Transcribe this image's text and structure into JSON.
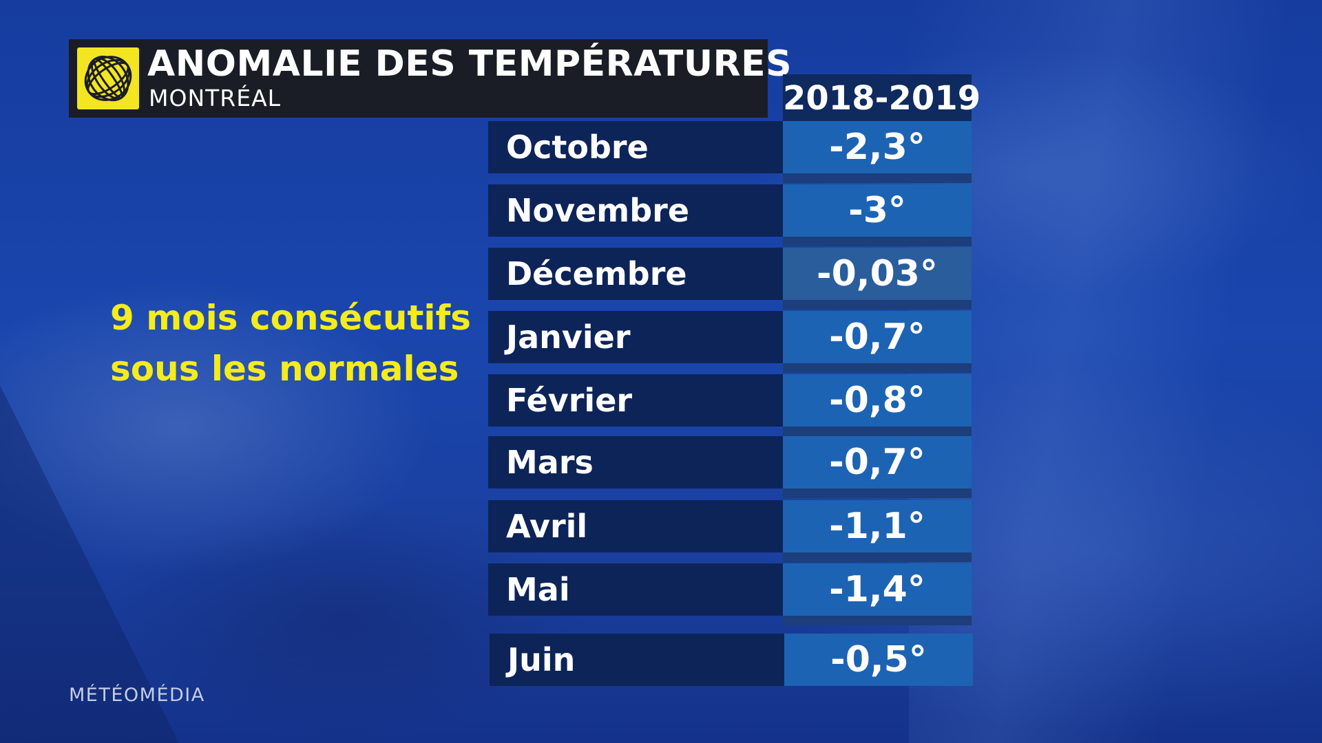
{
  "header": {
    "title": "ANOMALIE DES TEMPÉRATURES",
    "subtitle": "MONTRÉAL",
    "logo_icon": "meteomedia-logo-icon"
  },
  "table": {
    "column_header": "2018-2019",
    "rows": [
      {
        "month": "Octobre",
        "value": "-2,3°"
      },
      {
        "month": "Novembre",
        "value": "-3°"
      },
      {
        "month": "Décembre",
        "value": "-0,03°"
      },
      {
        "month": "Janvier",
        "value": "-0,7°"
      },
      {
        "month": "Février",
        "value": "-0,8°"
      },
      {
        "month": "Mars",
        "value": "-0,7°"
      },
      {
        "month": "Avril",
        "value": "-1,1°"
      },
      {
        "month": "Mai",
        "value": "-1,4°"
      },
      {
        "month": "Juin",
        "value": "-0,5°"
      }
    ]
  },
  "highlight": {
    "line1": "9 mois consécutifs",
    "line2": "sous les normales"
  },
  "brand": "MÉTÉOMÉDIA",
  "colors": {
    "background": "#1a46ad",
    "title_bg": "#1b1d26",
    "month_cell": "#0d2459",
    "value_cell": "#1d63b4",
    "highlight_text": "#f4ec1c",
    "logo": "#f2e521"
  }
}
